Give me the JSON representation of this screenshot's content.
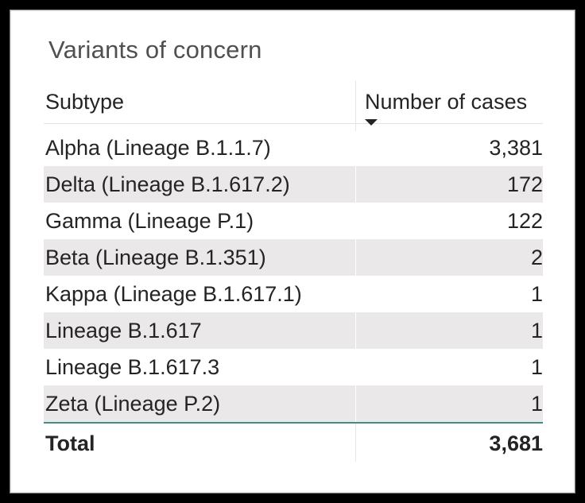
{
  "visual": {
    "title": "Variants of concern"
  },
  "table": {
    "columns": {
      "subtype": "Subtype",
      "cases": "Number of cases"
    },
    "sort": {
      "column": "Number of cases",
      "direction": "descending"
    },
    "rows": [
      {
        "subtype": "Alpha (Lineage B.1.1.7)",
        "cases": "3,381"
      },
      {
        "subtype": "Delta (Lineage B.1.617.2)",
        "cases": "172"
      },
      {
        "subtype": "Gamma (Lineage P.1)",
        "cases": "122"
      },
      {
        "subtype": "Beta (Lineage B.1.351)",
        "cases": "2"
      },
      {
        "subtype": "Kappa (Lineage B.1.617.1)",
        "cases": "1"
      },
      {
        "subtype": "Lineage B.1.617",
        "cases": "1"
      },
      {
        "subtype": "Lineage B.1.617.3",
        "cases": "1"
      },
      {
        "subtype": "Zeta (Lineage P.2)",
        "cases": "1"
      }
    ],
    "total": {
      "label": "Total",
      "cases": "3,681"
    }
  },
  "colors": {
    "alt_row": "#eae8e8",
    "total_border": "#3d8f87",
    "text": "#252423"
  },
  "icons": {
    "sort": "sort-descending-icon"
  }
}
